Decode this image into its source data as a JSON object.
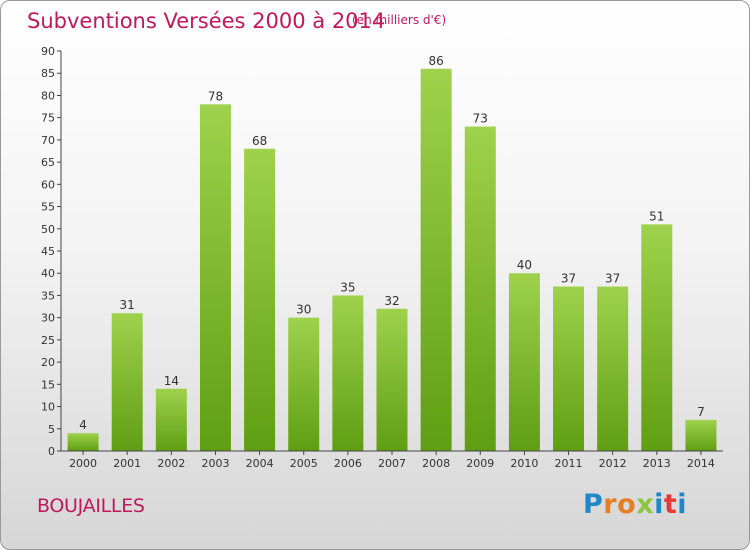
{
  "page": {
    "title": "Subventions Versées 2000 à 2014",
    "subtitle": "(en milliers d'€)",
    "commune": "BOUJAILLES",
    "logo_text": "Proxiti"
  },
  "colors": {
    "bar_top": "#9fd24c",
    "bar_bottom": "#5f9e12",
    "title": "#c2185b",
    "grid": "#d0d0d0",
    "axis": "#444444"
  },
  "chart_data": {
    "type": "bar",
    "title": "Subventions Versées 2000 à 2014",
    "subtitle": "(en milliers d'€)",
    "categories": [
      "2000",
      "2001",
      "2002",
      "2003",
      "2004",
      "2005",
      "2006",
      "2007",
      "2008",
      "2009",
      "2010",
      "2011",
      "2012",
      "2013",
      "2014"
    ],
    "values": [
      4,
      31,
      14,
      78,
      68,
      30,
      35,
      32,
      86,
      73,
      40,
      37,
      37,
      51,
      7
    ],
    "ylim": [
      0,
      90
    ],
    "ytick_step": 5,
    "grid": false,
    "data_labels": true
  }
}
